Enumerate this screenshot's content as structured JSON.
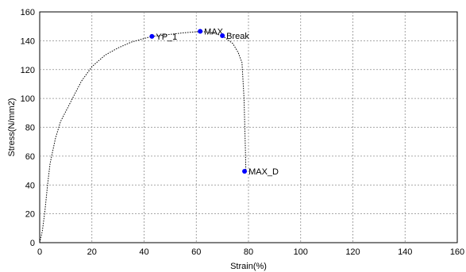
{
  "chart_data": {
    "type": "line",
    "xlabel": "Strain(%)",
    "ylabel": "Stress(N/mm2)",
    "xlim": [
      0,
      160
    ],
    "ylim": [
      0,
      160
    ],
    "x_ticks": [
      0,
      20,
      40,
      60,
      80,
      100,
      120,
      140,
      160
    ],
    "y_ticks": [
      0,
      20,
      40,
      60,
      80,
      100,
      120,
      140,
      160
    ],
    "grid": true,
    "legend": "none",
    "series": [
      {
        "style": "dotted",
        "color": "#000000",
        "x": [
          0,
          1,
          2,
          3,
          4,
          6,
          8,
          12,
          16,
          20,
          25,
          30,
          35,
          40,
          43,
          48,
          55,
          62,
          66,
          70,
          74,
          76,
          77.5,
          78.3,
          78.8,
          79
        ],
        "y": [
          0,
          8,
          22,
          40,
          55,
          72,
          84,
          98,
          112,
          122,
          130,
          135,
          139,
          141.5,
          143,
          144,
          145.5,
          146.5,
          145.5,
          143.5,
          138,
          132,
          125,
          100,
          65,
          50
        ]
      }
    ],
    "annotations": [
      {
        "label": "YP_1",
        "x": 43,
        "y": 143,
        "color": "#0000ff"
      },
      {
        "label": "MAX",
        "x": 61.5,
        "y": 146.5,
        "color": "#0000ff"
      },
      {
        "label": "Break",
        "x": 70,
        "y": 143.5,
        "color": "#0000ff"
      },
      {
        "label": "MAX_D",
        "x": 78.5,
        "y": 49.5,
        "color": "#0000ff"
      }
    ]
  }
}
